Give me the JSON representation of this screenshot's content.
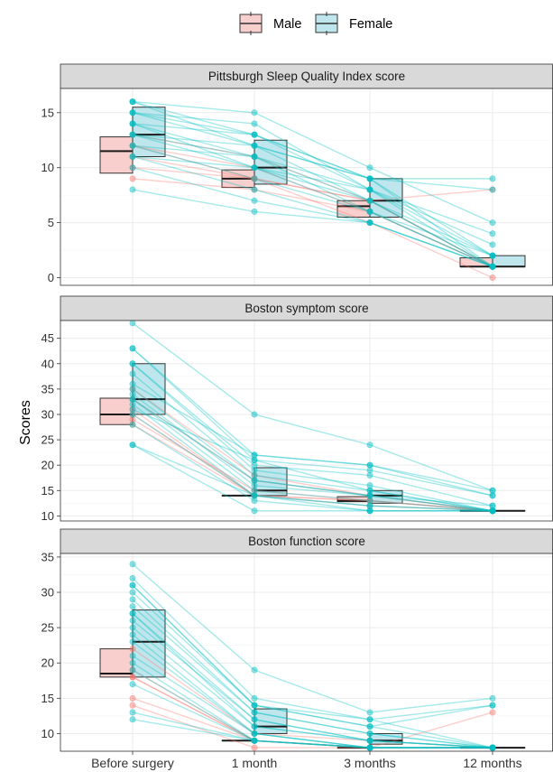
{
  "colors": {
    "male": "#F8766D",
    "female": "#00BFC4",
    "male_fill": "#F8CFCC",
    "female_fill": "#BEE6EC"
  },
  "legend": {
    "items": [
      {
        "key": "male",
        "label": "Male"
      },
      {
        "key": "female",
        "label": "Female"
      }
    ]
  },
  "chart_data": {
    "type": "box-with-paired-lines",
    "ylabel": "Scores",
    "xlabel": "",
    "categories": [
      "Before surgery",
      "1 month",
      "3 months",
      "12 months"
    ],
    "legend_position": "top",
    "grid": true,
    "panels": [
      {
        "title": "Pittsburgh Sleep Quality Index score",
        "ylim": [
          -0.7,
          17.2
        ],
        "yticks": [
          0,
          5,
          10,
          15
        ],
        "boxes": {
          "male": [
            {
              "q1": 9.5,
              "median": 11.5,
              "q3": 12.8
            },
            {
              "q1": 8.2,
              "median": 9.0,
              "q3": 9.8
            },
            {
              "q1": 5.5,
              "median": 6.5,
              "q3": 7.0
            },
            {
              "q1": 1.0,
              "median": 1.0,
              "q3": 1.8
            }
          ],
          "female": [
            {
              "q1": 11.0,
              "median": 13.0,
              "q3": 15.5
            },
            {
              "q1": 8.5,
              "median": 10.0,
              "q3": 12.5
            },
            {
              "q1": 5.5,
              "median": 7.0,
              "q3": 9.0
            },
            {
              "q1": 1.0,
              "median": 1.0,
              "q3": 2.0
            }
          ]
        },
        "subjects": {
          "male": [
            [
              13,
              11,
              7,
              1
            ],
            [
              12,
              10,
              6,
              1
            ],
            [
              11,
              9,
              7,
              8
            ],
            [
              9,
              8,
              6,
              1
            ],
            [
              10,
              9,
              5,
              0
            ],
            [
              12,
              9,
              7,
              1
            ]
          ],
          "female": [
            [
              16,
              15,
              10,
              5
            ],
            [
              16,
              13,
              9,
              9
            ],
            [
              15,
              12,
              9,
              2
            ],
            [
              15,
              14,
              8,
              4
            ],
            [
              14,
              13,
              9,
              1
            ],
            [
              14,
              11,
              8,
              3
            ],
            [
              13,
              12,
              7,
              1
            ],
            [
              13,
              10,
              6,
              2
            ],
            [
              12,
              11,
              7,
              1
            ],
            [
              12,
              9,
              6,
              1
            ],
            [
              11,
              10,
              8,
              2
            ],
            [
              11,
              8,
              5,
              1
            ],
            [
              10,
              7,
              5,
              1
            ],
            [
              8,
              6,
              5,
              1
            ],
            [
              16,
              12,
              9,
              8
            ],
            [
              15,
              13,
              8,
              1
            ],
            [
              13,
              11,
              6,
              1
            ],
            [
              14,
              10,
              7,
              2
            ]
          ]
        }
      },
      {
        "title": "Boston symptom score",
        "ylim": [
          9.0,
          48.5
        ],
        "yticks": [
          10,
          15,
          20,
          25,
          30,
          35,
          40,
          45
        ],
        "boxes": {
          "male": [
            {
              "q1": 28,
              "median": 30,
              "q3": 33.2
            },
            {
              "q1": 14,
              "median": 14,
              "q3": 14
            },
            {
              "q1": 12.8,
              "median": 13,
              "q3": 13.8
            },
            {
              "q1": 11,
              "median": 11,
              "q3": 11
            }
          ],
          "female": [
            {
              "q1": 30,
              "median": 33,
              "q3": 40
            },
            {
              "q1": 14,
              "median": 15,
              "q3": 19.5
            },
            {
              "q1": 12.5,
              "median": 14,
              "q3": 15
            },
            {
              "q1": 11,
              "median": 11,
              "q3": 11
            }
          ]
        },
        "subjects": {
          "male": [
            [
              35,
              18,
              14,
              11
            ],
            [
              30,
              14,
              13,
              11
            ],
            [
              33,
              17,
              14,
              11
            ],
            [
              28,
              14,
              12,
              11
            ],
            [
              29,
              15,
              13,
              11
            ],
            [
              31,
              14,
              13,
              11
            ]
          ],
          "female": [
            [
              48,
              30,
              24,
              15
            ],
            [
              43,
              22,
              20,
              14
            ],
            [
              43,
              21,
              19,
              14
            ],
            [
              40,
              20,
              18,
              12
            ],
            [
              40,
              19,
              16,
              11
            ],
            [
              38,
              18,
              15,
              11
            ],
            [
              35,
              17,
              14,
              11
            ],
            [
              34,
              16,
              14,
              12
            ],
            [
              33,
              15,
              13,
              11
            ],
            [
              32,
              14,
              12,
              11
            ],
            [
              30,
              14,
              11,
              11
            ],
            [
              28,
              13,
              11,
              11
            ],
            [
              24,
              14,
              12,
              11
            ],
            [
              24,
              11,
              11,
              11
            ],
            [
              36,
              22,
              20,
              15
            ],
            [
              31,
              21,
              15,
              11
            ],
            [
              33,
              17,
              14,
              11
            ]
          ]
        }
      },
      {
        "title": "Boston function score",
        "ylim": [
          7.5,
          35.5
        ],
        "yticks": [
          10,
          15,
          20,
          25,
          30,
          35
        ],
        "boxes": {
          "male": [
            {
              "q1": 18,
              "median": 18.5,
              "q3": 22
            },
            {
              "q1": 9,
              "median": 9,
              "q3": 9
            },
            {
              "q1": 8,
              "median": 8,
              "q3": 8
            },
            {
              "q1": 8,
              "median": 8,
              "q3": 8
            }
          ],
          "female": [
            {
              "q1": 18,
              "median": 23,
              "q3": 27.5
            },
            {
              "q1": 10,
              "median": 11,
              "q3": 13.5
            },
            {
              "q1": 8.5,
              "median": 9,
              "q3": 10
            },
            {
              "q1": 8,
              "median": 8,
              "q3": 8
            }
          ]
        },
        "subjects": {
          "male": [
            [
              22,
              10,
              9,
              8
            ],
            [
              19,
              9,
              8,
              13
            ],
            [
              18,
              9,
              8,
              8
            ],
            [
              15,
              9,
              8,
              8
            ],
            [
              14,
              8,
              8,
              8
            ],
            [
              18,
              9,
              8,
              8
            ]
          ],
          "female": [
            [
              34,
              19,
              13,
              15
            ],
            [
              32,
              15,
              12,
              14
            ],
            [
              31,
              14,
              11,
              14
            ],
            [
              31,
              14,
              11,
              8
            ],
            [
              29,
              13,
              10,
              8
            ],
            [
              28,
              13,
              10,
              8
            ],
            [
              27,
              12,
              9,
              8
            ],
            [
              26,
              12,
              9,
              8
            ],
            [
              25,
              11,
              9,
              8
            ],
            [
              24,
              10,
              8,
              8
            ],
            [
              23,
              10,
              8,
              8
            ],
            [
              21,
              10,
              8,
              8
            ],
            [
              20,
              9,
              8,
              8
            ],
            [
              19,
              9,
              8,
              8
            ],
            [
              17,
              9,
              8,
              8
            ],
            [
              13,
              9,
              8,
              8
            ],
            [
              12,
              9,
              8,
              8
            ],
            [
              30,
              14,
              12,
              8
            ],
            [
              27,
              11,
              9,
              8
            ]
          ]
        }
      }
    ]
  }
}
